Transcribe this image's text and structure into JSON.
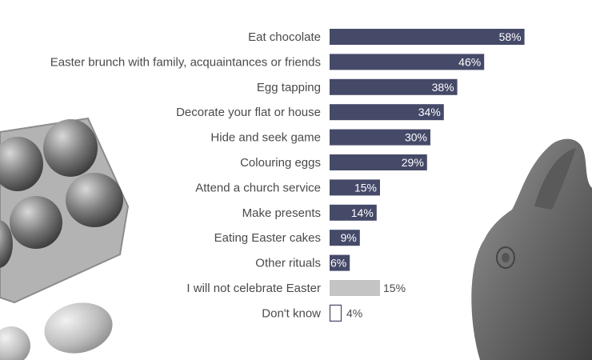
{
  "chart_data": {
    "type": "bar",
    "orientation": "horizontal",
    "title": "",
    "xlabel": "",
    "ylabel": "",
    "xlim": [
      0,
      65
    ],
    "grid": false,
    "legend": "none",
    "categories": [
      "Eat chocolate",
      "Easter brunch with family, acquaintances or friends",
      "Egg tapping",
      "Decorate your flat or house",
      "Hide and seek game",
      "Colouring eggs",
      "Attend a church service",
      "Make presents",
      "Eating Easter cakes",
      "Other rituals",
      "I will not celebrate Easter",
      "Don't know"
    ],
    "values": [
      58,
      46,
      38,
      34,
      30,
      29,
      15,
      14,
      9,
      6,
      15,
      4
    ],
    "value_labels": [
      "58%",
      "46%",
      "38%",
      "34%",
      "30%",
      "29%",
      "15%",
      "14%",
      "9%",
      "6%",
      "15%",
      "4%"
    ],
    "bar_styles": [
      "filled",
      "filled",
      "filled",
      "filled",
      "filled",
      "filled",
      "filled",
      "filled",
      "filled",
      "filled",
      "gray",
      "outline"
    ]
  },
  "colors": {
    "bar": "#464a69",
    "bar_gray": "#c4c4c4",
    "outline": "#464a69",
    "label_text": "#4a4a4a",
    "value_text_inside": "#ffffff",
    "value_text_outside": "#4a4a4a"
  },
  "decorations": {
    "left_icon": "egg-carton-photo-icon",
    "left_bottom_icon": "egg-photo-icon",
    "right_icon": "chocolate-bunny-photo-icon"
  }
}
